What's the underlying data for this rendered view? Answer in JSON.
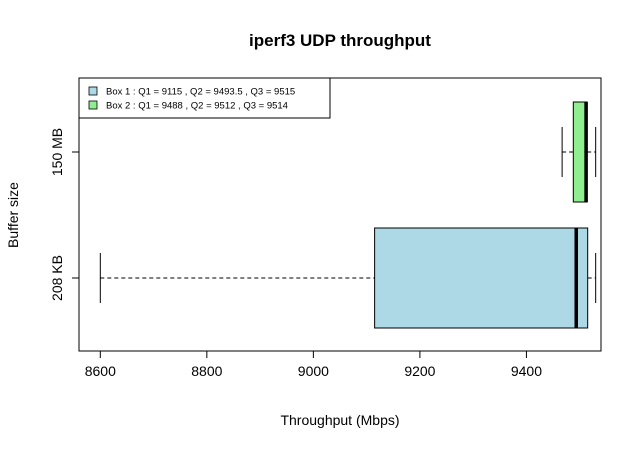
{
  "chart_data": {
    "type": "boxplot",
    "title": "iperf3 UDP throughput",
    "xlabel": "Throughput (Mbps)",
    "ylabel": "Buffer size",
    "xlim": [
      8560,
      9540
    ],
    "xticks": [
      8600,
      8800,
      9000,
      9200,
      9400
    ],
    "categories": [
      "208 KB",
      "150 MB"
    ],
    "series": [
      {
        "category": "208 KB",
        "min": 8600,
        "q1": 9115,
        "median": 9493.5,
        "q3": 9515,
        "max": 9530,
        "color": "#add8e6"
      },
      {
        "category": "150 MB",
        "min": 9467,
        "q1": 9488,
        "median": 9512,
        "q3": 9514,
        "max": 9530,
        "color": "#90ee90"
      }
    ],
    "legend": {
      "position": "top-left",
      "entries": [
        {
          "label": "Box 1 : Q1 = 9115 , Q2 = 9493.5 , Q3 = 9515",
          "color": "#add8e6"
        },
        {
          "label": "Box 2 : Q1 = 9488 , Q2 = 9512 , Q3 = 9514",
          "color": "#90ee90"
        }
      ]
    },
    "grid": false
  }
}
